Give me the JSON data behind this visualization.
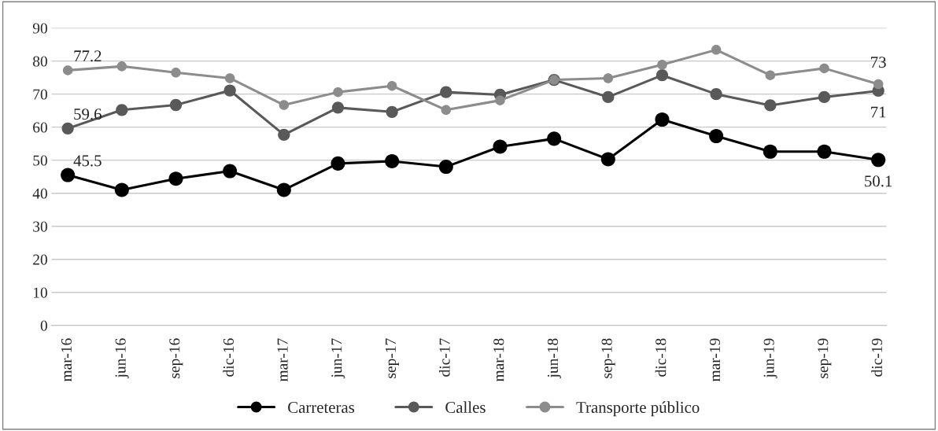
{
  "chart_data": {
    "type": "line",
    "categories": [
      "mar-16",
      "jun-16",
      "sep-16",
      "dic-16",
      "mar-17",
      "jun-17",
      "sep-17",
      "dic-17",
      "mar-18",
      "jun-18",
      "sep-18",
      "dic-18",
      "mar-19",
      "jun-19",
      "sep-19",
      "dic-19"
    ],
    "series": [
      {
        "name": "Carreteras",
        "color": "#000000",
        "values": [
          45.5,
          41.0,
          44.4,
          46.7,
          41.0,
          49.0,
          49.7,
          48.0,
          54.1,
          56.5,
          50.3,
          62.3,
          57.3,
          52.6,
          52.6,
          50.1
        ],
        "value_labels": [
          "45.5",
          null,
          null,
          null,
          null,
          null,
          null,
          null,
          null,
          null,
          null,
          null,
          null,
          null,
          null,
          "50.1"
        ]
      },
      {
        "name": "Calles",
        "color": "#595959",
        "values": [
          59.6,
          65.2,
          66.7,
          71.1,
          57.7,
          65.9,
          64.6,
          70.6,
          69.8,
          74.3,
          69.1,
          75.7,
          70.0,
          66.6,
          69.1,
          71
        ],
        "value_labels": [
          "59.6",
          null,
          null,
          null,
          null,
          null,
          null,
          null,
          null,
          null,
          null,
          null,
          null,
          null,
          null,
          "71"
        ]
      },
      {
        "name": "Transporte público",
        "color": "#8c8c8c",
        "values": [
          77.2,
          78.4,
          76.5,
          74.8,
          66.7,
          70.6,
          72.5,
          65.2,
          68.1,
          74.3,
          74.8,
          78.9,
          83.4,
          75.7,
          77.8,
          73
        ],
        "value_labels": [
          "77.2",
          null,
          null,
          null,
          null,
          null,
          null,
          null,
          null,
          null,
          null,
          null,
          null,
          null,
          null,
          "73"
        ]
      }
    ],
    "ylim": [
      0,
      90
    ],
    "yticks": [
      0,
      10,
      20,
      30,
      40,
      50,
      60,
      70,
      80,
      90
    ],
    "grid": "y",
    "legend": "bottom",
    "marker": "circle",
    "line_style": "solid"
  }
}
